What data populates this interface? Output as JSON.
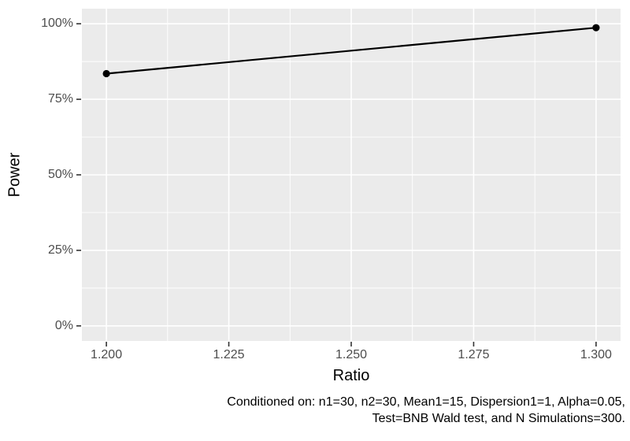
{
  "chart_data": {
    "type": "line",
    "title": "",
    "xlabel": "Ratio",
    "ylabel": "Power",
    "series": [
      {
        "name": "Power",
        "x": [
          1.2,
          1.3
        ],
        "y_percent": [
          83.5,
          98.7
        ]
      }
    ],
    "x_ticks": [
      1.2,
      1.225,
      1.25,
      1.275,
      1.3
    ],
    "x_tick_labels": [
      "1.200",
      "1.225",
      "1.250",
      "1.275",
      "1.300"
    ],
    "y_ticks": [
      0,
      25,
      50,
      75,
      100
    ],
    "y_tick_labels": [
      "0%",
      "25%",
      "50%",
      "75%",
      "100%"
    ],
    "x_minor_ticks": [
      1.2125,
      1.2375,
      1.2625,
      1.2875
    ],
    "y_minor_ticks": [
      12.5,
      37.5,
      62.5,
      87.5
    ],
    "xlim": [
      1.2,
      1.3
    ],
    "ylim_percent": [
      0,
      100
    ],
    "xlim_expanded": [
      1.195,
      1.305
    ],
    "ylim_expanded_percent": [
      -5,
      105
    ],
    "grid": "major-and-minor, white on gray panel",
    "legend_position": "none",
    "caption_line1": "Conditioned on: n1=30, n2=30, Mean1=15, Dispersion1=1, Alpha=0.05,",
    "caption_line2": "Test=BNB Wald test, and N Simulations=300.",
    "colors": {
      "panel_background": "#EBEBEB",
      "gridline": "#FFFFFF",
      "data_line": "#000000",
      "data_point": "#000000",
      "tick_mark": "#333333",
      "tick_label_text": "#4D4D4D",
      "axis_title_text": "#000000",
      "caption_text": "#000000",
      "figure_background": "#FFFFFF"
    }
  }
}
